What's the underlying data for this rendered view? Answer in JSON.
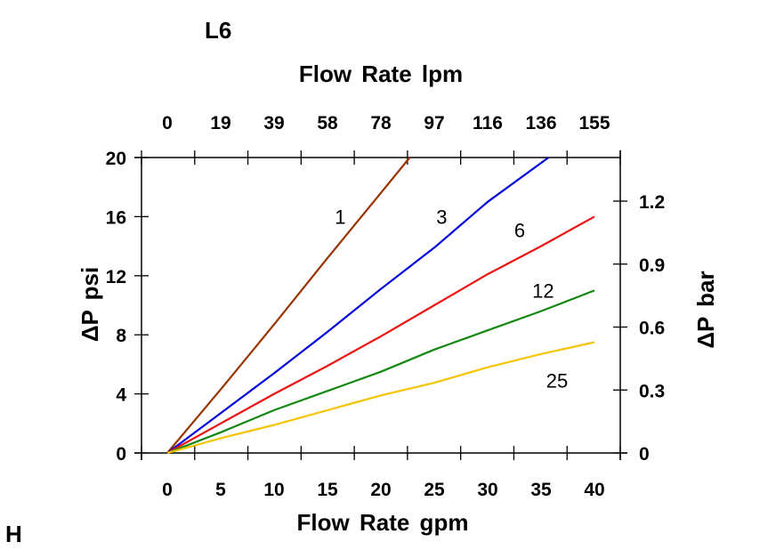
{
  "corner_labels": {
    "top": "L6",
    "bottom": "H"
  },
  "chart_data": {
    "type": "line",
    "title": "L6",
    "xlabel": "Flow Rate gpm",
    "x2label": "Flow Rate lpm",
    "ylabel": "ΔP psi",
    "y2label": "ΔP bar",
    "xlim": [
      -2.5,
      42.5
    ],
    "ylim": [
      0,
      20
    ],
    "y2lim": [
      0,
      1.38
    ],
    "x_ticks": [
      "0",
      "5",
      "10",
      "15",
      "20",
      "25",
      "30",
      "35",
      "40"
    ],
    "x_tick_values": [
      0,
      5,
      10,
      15,
      20,
      25,
      30,
      35,
      40
    ],
    "x2_ticks": [
      "0",
      "19",
      "39",
      "58",
      "78",
      "97",
      "116",
      "136",
      "155"
    ],
    "y_ticks": [
      "0",
      "4",
      "8",
      "12",
      "16",
      "20"
    ],
    "y_tick_values": [
      0,
      4,
      8,
      12,
      16,
      20
    ],
    "y2_ticks": [
      "0",
      "0.3",
      "0.6",
      "0.9",
      "1.2"
    ],
    "y2_tick_values": [
      0,
      0.3,
      0.6,
      0.9,
      1.2
    ],
    "grid": false,
    "series": [
      {
        "name": "1",
        "color": "#993300",
        "x": [
          0,
          5,
          10,
          15,
          20,
          22.7
        ],
        "y": [
          0,
          4.3,
          8.7,
          13.2,
          17.6,
          20
        ]
      },
      {
        "name": "3",
        "color": "#0000dd",
        "x": [
          0,
          5,
          10,
          15,
          20,
          25,
          30,
          35.7
        ],
        "y": [
          0,
          2.7,
          5.4,
          8.2,
          11.1,
          13.9,
          17.0,
          20
        ]
      },
      {
        "name": "6",
        "color": "#ee1111",
        "x": [
          0,
          5,
          10,
          15,
          20,
          25,
          30,
          35,
          40
        ],
        "y": [
          0,
          2.0,
          4.0,
          5.9,
          7.9,
          10.0,
          12.1,
          14.0,
          16.0
        ]
      },
      {
        "name": "12",
        "color": "#118811",
        "x": [
          0,
          5,
          10,
          15,
          20,
          25,
          30,
          35,
          40
        ],
        "y": [
          0,
          1.4,
          2.9,
          4.2,
          5.5,
          7.0,
          8.3,
          9.6,
          11.0
        ]
      },
      {
        "name": "25",
        "color": "#f5c400",
        "x": [
          0,
          5,
          10,
          15,
          20,
          25,
          30,
          35,
          40
        ],
        "y": [
          0,
          1.0,
          1.9,
          2.9,
          3.9,
          4.75,
          5.8,
          6.7,
          7.5
        ]
      }
    ],
    "series_labels": [
      {
        "text": "1",
        "x": 16.2,
        "y": 16.0
      },
      {
        "text": "3",
        "x": 25.7,
        "y": 16.0
      },
      {
        "text": "6",
        "x": 33.0,
        "y": 15.1
      },
      {
        "text": "12",
        "x": 35.2,
        "y": 11.0
      },
      {
        "text": "25",
        "x": 36.5,
        "y": 4.9
      }
    ]
  }
}
